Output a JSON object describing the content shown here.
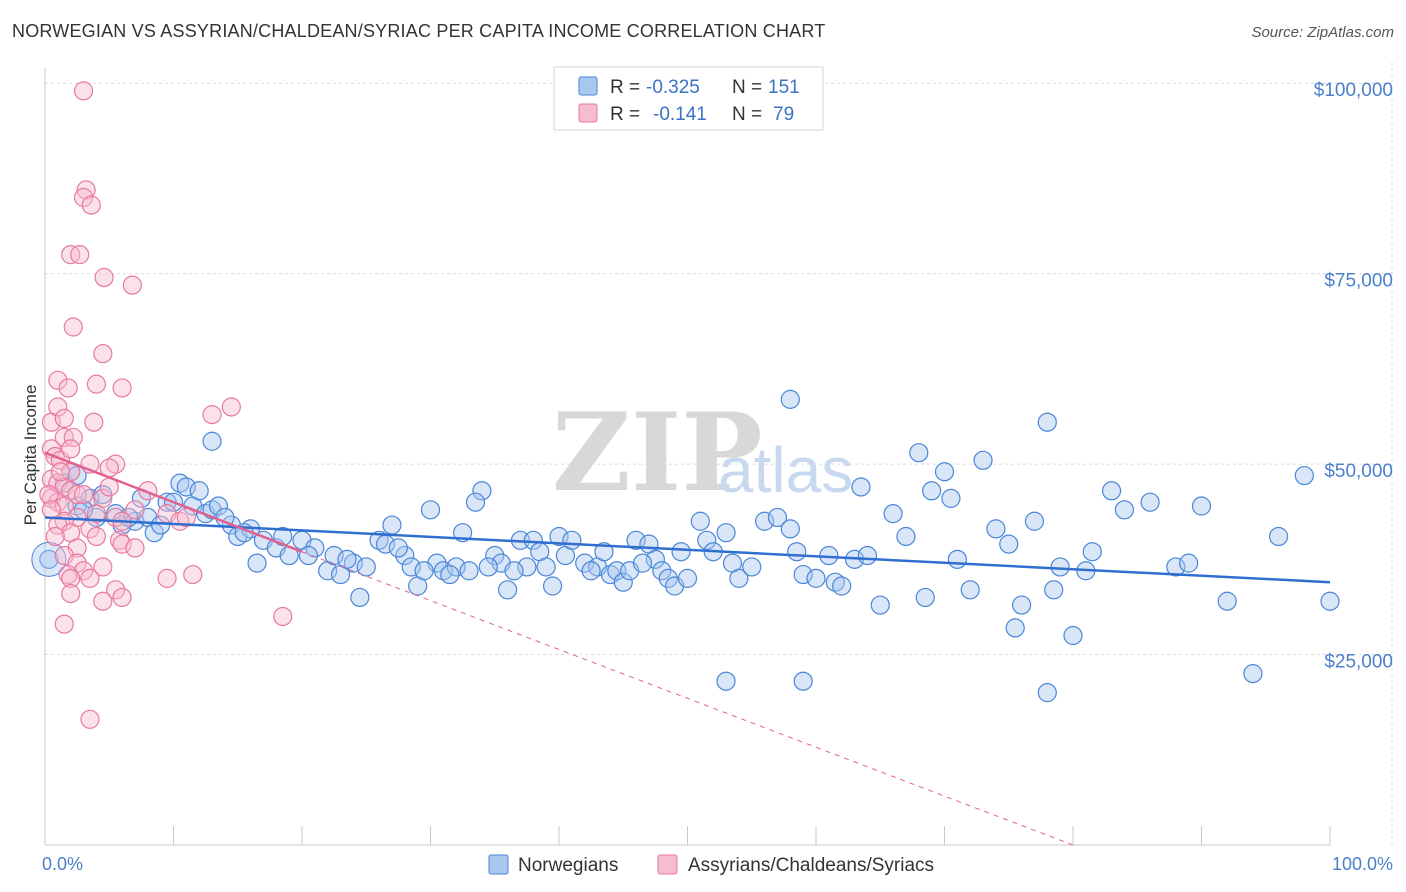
{
  "header": {
    "title": "NORWEGIAN VS ASSYRIAN/CHALDEAN/SYRIAC PER CAPITA INCOME CORRELATION CHART",
    "source": "Source: ZipAtlas.com"
  },
  "watermark": {
    "zip": "ZIP",
    "atlas": "atlas"
  },
  "colors": {
    "blue": "#4a86d8",
    "blue_fill": "#a9c8f0",
    "blue_line": "#2f6fd0",
    "pink": "#e8799f",
    "pink_fill": "#f6bcd0",
    "pink_line": "#e2628f",
    "axis_text": "#4a7fcc"
  },
  "legend": {
    "rows": [
      {
        "r_label": "R =",
        "r_value": "-0.325",
        "n_label": "N =",
        "n_value": "151"
      },
      {
        "r_label": "R =",
        "r_value": "-0.141",
        "n_label": "N =",
        "n_value": "79"
      }
    ]
  },
  "chart_data": {
    "type": "scatter",
    "title": "NORWEGIAN VS ASSYRIAN/CHALDEAN/SYRIAC PER CAPITA INCOME CORRELATION CHART",
    "xlabel": "",
    "ylabel": "Per Capita Income",
    "xlim": [
      0,
      100
    ],
    "ylim": [
      0,
      102000
    ],
    "x_tick_labels": [
      "0.0%",
      "100.0%"
    ],
    "y_ticks": [
      25000,
      50000,
      75000,
      100000
    ],
    "y_tick_labels": [
      "$25,000",
      "$50,000",
      "$75,000",
      "$100,000"
    ],
    "grid": true,
    "legend_position": "bottom",
    "series": [
      {
        "name": "Norwegians",
        "r": -0.325,
        "n": 151,
        "trend": {
          "x": [
            0,
            100
          ],
          "y": [
            43000,
            34500
          ]
        },
        "points": [
          [
            0.3,
            37500
          ],
          [
            2,
            49000
          ],
          [
            1.5,
            47500
          ],
          [
            3.5,
            45500
          ],
          [
            2.5,
            44500
          ],
          [
            4,
            43000
          ],
          [
            5.5,
            43500
          ],
          [
            6,
            42000
          ],
          [
            7,
            42500
          ],
          [
            8,
            43000
          ],
          [
            8.5,
            41000
          ],
          [
            7.5,
            45500
          ],
          [
            9.5,
            45000
          ],
          [
            10.5,
            47500
          ],
          [
            11,
            47000
          ],
          [
            11.5,
            44500
          ],
          [
            12.5,
            43500
          ],
          [
            13,
            44000
          ],
          [
            13.5,
            44500
          ],
          [
            14.5,
            42000
          ],
          [
            15,
            40500
          ],
          [
            16,
            41500
          ],
          [
            17,
            40000
          ],
          [
            18,
            39000
          ],
          [
            19,
            38000
          ],
          [
            20,
            40000
          ],
          [
            21,
            39000
          ],
          [
            22,
            36000
          ],
          [
            22.5,
            38000
          ],
          [
            23,
            35500
          ],
          [
            24,
            37000
          ],
          [
            24.5,
            32500
          ],
          [
            25,
            36500
          ],
          [
            26,
            40000
          ],
          [
            26.5,
            39500
          ],
          [
            27,
            42000
          ],
          [
            28,
            38000
          ],
          [
            28.5,
            36500
          ],
          [
            29,
            34000
          ],
          [
            30,
            44000
          ],
          [
            30.5,
            37000
          ],
          [
            31,
            36000
          ],
          [
            32,
            36500
          ],
          [
            32.5,
            41000
          ],
          [
            33,
            36000
          ],
          [
            34,
            46500
          ],
          [
            35,
            38000
          ],
          [
            35.5,
            37000
          ],
          [
            36,
            33500
          ],
          [
            37,
            40000
          ],
          [
            37.5,
            36500
          ],
          [
            38,
            40000
          ],
          [
            38.5,
            38500
          ],
          [
            39,
            36500
          ],
          [
            40,
            40500
          ],
          [
            40.5,
            38000
          ],
          [
            41,
            40000
          ],
          [
            42,
            37000
          ],
          [
            43,
            36500
          ],
          [
            43.5,
            38500
          ],
          [
            44,
            35500
          ],
          [
            44.5,
            36000
          ],
          [
            45,
            34500
          ],
          [
            46,
            40000
          ],
          [
            47,
            39500
          ],
          [
            47.5,
            37500
          ],
          [
            48,
            36000
          ],
          [
            48.5,
            35000
          ],
          [
            49,
            34000
          ],
          [
            50,
            35000
          ],
          [
            51,
            42500
          ],
          [
            51.5,
            40000
          ],
          [
            52,
            38500
          ],
          [
            53,
            41000
          ],
          [
            53.5,
            37000
          ],
          [
            54,
            35000
          ],
          [
            55,
            36500
          ],
          [
            56,
            42500
          ],
          [
            57,
            43000
          ],
          [
            58,
            41500
          ],
          [
            58.5,
            38500
          ],
          [
            59,
            35500
          ],
          [
            60,
            35000
          ],
          [
            61,
            38000
          ],
          [
            61.5,
            34500
          ],
          [
            62,
            34000
          ],
          [
            63,
            37500
          ],
          [
            63.5,
            47000
          ],
          [
            64,
            38000
          ],
          [
            65,
            31500
          ],
          [
            66,
            43500
          ],
          [
            67,
            40500
          ],
          [
            68,
            51500
          ],
          [
            68.5,
            32500
          ],
          [
            69,
            46500
          ],
          [
            70,
            49000
          ],
          [
            70.5,
            45500
          ],
          [
            71,
            37500
          ],
          [
            72,
            33500
          ],
          [
            73,
            50500
          ],
          [
            74,
            41500
          ],
          [
            75,
            39500
          ],
          [
            75.5,
            28500
          ],
          [
            76,
            31500
          ],
          [
            77,
            42500
          ],
          [
            78,
            55500
          ],
          [
            78.5,
            33500
          ],
          [
            79,
            36500
          ],
          [
            80,
            27500
          ],
          [
            81,
            36000
          ],
          [
            81.5,
            38500
          ],
          [
            83,
            46500
          ],
          [
            84,
            44000
          ],
          [
            86,
            45000
          ],
          [
            88,
            36500
          ],
          [
            89,
            37000
          ],
          [
            90,
            44500
          ],
          [
            92,
            32000
          ],
          [
            96,
            40500
          ],
          [
            98,
            48500
          ],
          [
            100,
            32000
          ],
          [
            13,
            53000
          ],
          [
            58,
            58500
          ],
          [
            78,
            20000
          ],
          [
            53,
            21500
          ],
          [
            59,
            21500
          ],
          [
            94,
            22500
          ],
          [
            2.5,
            48500
          ],
          [
            3,
            44000
          ],
          [
            4.5,
            46000
          ],
          [
            6.5,
            43000
          ],
          [
            9,
            42000
          ],
          [
            10,
            45000
          ],
          [
            12,
            46500
          ],
          [
            14,
            43000
          ],
          [
            15.5,
            41000
          ],
          [
            16.5,
            37000
          ],
          [
            18.5,
            40500
          ],
          [
            20.5,
            38000
          ],
          [
            23.5,
            37500
          ],
          [
            27.5,
            39000
          ],
          [
            29.5,
            36000
          ],
          [
            31.5,
            35500
          ],
          [
            33.5,
            45000
          ],
          [
            34.5,
            36500
          ],
          [
            36.5,
            36000
          ],
          [
            39.5,
            34000
          ],
          [
            42.5,
            36000
          ],
          [
            45.5,
            36000
          ],
          [
            46.5,
            37000
          ],
          [
            49.5,
            38500
          ]
        ]
      },
      {
        "name": "Assyrians/Chaldeans/Syriacs",
        "r": -0.141,
        "n": 79,
        "trend": {
          "x": [
            0,
            20
          ],
          "y": [
            51500,
            38500
          ]
        },
        "trend_ext": {
          "x": [
            20,
            80
          ],
          "y": [
            38500,
            0
          ]
        },
        "points": [
          [
            3,
            99000
          ],
          [
            3.2,
            86000
          ],
          [
            3,
            85000
          ],
          [
            3.6,
            84000
          ],
          [
            2,
            77500
          ],
          [
            2.7,
            77500
          ],
          [
            4.6,
            74500
          ],
          [
            6.8,
            73500
          ],
          [
            2.2,
            68000
          ],
          [
            4.5,
            64500
          ],
          [
            1,
            61000
          ],
          [
            4,
            60500
          ],
          [
            6,
            60000
          ],
          [
            1.8,
            60000
          ],
          [
            0.5,
            55500
          ],
          [
            1.5,
            53500
          ],
          [
            2.2,
            53500
          ],
          [
            3.8,
            55500
          ],
          [
            1,
            57500
          ],
          [
            1.5,
            56000
          ],
          [
            0.5,
            52000
          ],
          [
            0.8,
            51000
          ],
          [
            1.2,
            50500
          ],
          [
            3.5,
            50000
          ],
          [
            2,
            49000
          ],
          [
            5.5,
            50000
          ],
          [
            5,
            49500
          ],
          [
            0.5,
            48000
          ],
          [
            1,
            47500
          ],
          [
            1.5,
            47000
          ],
          [
            2,
            46500
          ],
          [
            2.5,
            46000
          ],
          [
            3,
            46000
          ],
          [
            0.5,
            45500
          ],
          [
            1,
            45000
          ],
          [
            1.5,
            44500
          ],
          [
            4,
            43500
          ],
          [
            5.5,
            43000
          ],
          [
            2.5,
            43000
          ],
          [
            1.5,
            42500
          ],
          [
            1,
            42000
          ],
          [
            3.5,
            41500
          ],
          [
            2,
            41000
          ],
          [
            4,
            40500
          ],
          [
            5.8,
            40000
          ],
          [
            6,
            39500
          ],
          [
            7,
            39000
          ],
          [
            2.5,
            39000
          ],
          [
            1.5,
            38000
          ],
          [
            2.5,
            37000
          ],
          [
            4.5,
            36500
          ],
          [
            3,
            36000
          ],
          [
            1.8,
            35500
          ],
          [
            2,
            35000
          ],
          [
            3.5,
            35000
          ],
          [
            9.5,
            35000
          ],
          [
            11.5,
            35500
          ],
          [
            5.5,
            33500
          ],
          [
            4.5,
            32000
          ],
          [
            2,
            33000
          ],
          [
            6,
            32500
          ],
          [
            1.5,
            29000
          ],
          [
            18.5,
            30000
          ],
          [
            3.5,
            16500
          ],
          [
            14.5,
            57500
          ],
          [
            13,
            56500
          ],
          [
            9.5,
            43500
          ],
          [
            10.5,
            42500
          ],
          [
            11,
            43000
          ],
          [
            7,
            44000
          ],
          [
            8,
            46500
          ],
          [
            0.3,
            46000
          ],
          [
            0.5,
            44000
          ],
          [
            0.8,
            40500
          ],
          [
            4.5,
            45500
          ],
          [
            5,
            47000
          ],
          [
            6,
            42500
          ],
          [
            2,
            52000
          ],
          [
            1.2,
            49000
          ]
        ]
      }
    ]
  }
}
